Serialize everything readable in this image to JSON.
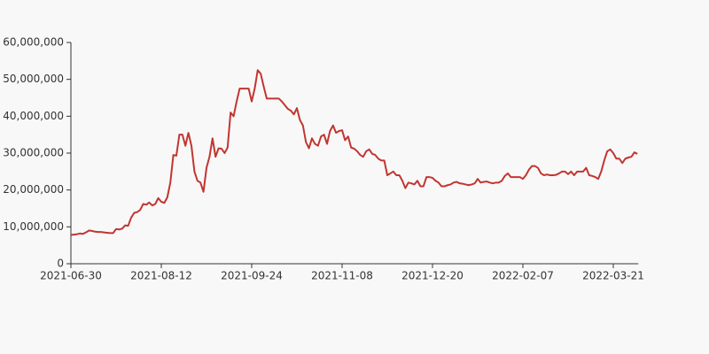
{
  "chart_data": {
    "type": "line",
    "categories": [
      "2021-06-30",
      null,
      null,
      null,
      null,
      null,
      null,
      null,
      null,
      null,
      null,
      null,
      null,
      null,
      null,
      null,
      null,
      null,
      null,
      null,
      null,
      null,
      null,
      null,
      null,
      null,
      null,
      null,
      null,
      null,
      "2021-08-12",
      null,
      null,
      null,
      null,
      null,
      null,
      null,
      null,
      null,
      null,
      null,
      null,
      null,
      null,
      null,
      null,
      null,
      null,
      null,
      null,
      null,
      null,
      null,
      null,
      null,
      null,
      null,
      null,
      null,
      "2021-09-24",
      null,
      null,
      null,
      null,
      null,
      null,
      null,
      null,
      null,
      null,
      null,
      null,
      null,
      null,
      null,
      null,
      null,
      null,
      null,
      null,
      null,
      null,
      null,
      null,
      null,
      null,
      null,
      null,
      null,
      "2021-11-08",
      null,
      null,
      null,
      null,
      null,
      null,
      null,
      null,
      null,
      null,
      null,
      null,
      null,
      null,
      null,
      null,
      null,
      null,
      null,
      null,
      null,
      null,
      null,
      null,
      null,
      null,
      null,
      null,
      null,
      "2021-12-20",
      null,
      null,
      null,
      null,
      null,
      null,
      null,
      null,
      null,
      null,
      null,
      null,
      null,
      null,
      null,
      null,
      null,
      null,
      null,
      null,
      null,
      null,
      null,
      null,
      null,
      null,
      null,
      null,
      null,
      "2022-02-07",
      null,
      null,
      null,
      null,
      null,
      null,
      null,
      null,
      null,
      null,
      null,
      null,
      null,
      null,
      null,
      null,
      null,
      null,
      null,
      null,
      null,
      null,
      null,
      null,
      null,
      null,
      null,
      null,
      null,
      "2022-03-21",
      null,
      null,
      null,
      null,
      null,
      null,
      null,
      null
    ],
    "series": [
      {
        "color": "#c23531",
        "values": [
          7800000,
          7900000,
          8000000,
          8200000,
          8100000,
          8500000,
          9000000,
          8900000,
          8700000,
          8600000,
          8600000,
          8500000,
          8400000,
          8300000,
          8300000,
          9400000,
          9300000,
          9500000,
          10400000,
          10300000,
          12500000,
          13800000,
          14000000,
          14600000,
          16200000,
          16000000,
          16600000,
          15800000,
          16200000,
          17800000,
          16800000,
          16500000,
          18000000,
          22000000,
          29500000,
          29300000,
          35000000,
          35000000,
          32000000,
          35500000,
          32000000,
          25000000,
          22500000,
          22000000,
          19500000,
          26000000,
          29000000,
          34000000,
          29000000,
          31300000,
          31200000,
          30000000,
          31500000,
          41000000,
          40000000,
          44000000,
          47500000,
          47500000,
          47500000,
          47500000,
          44000000,
          47500000,
          52500000,
          51500000,
          48000000,
          44800000,
          44800000,
          44800000,
          44800000,
          44800000,
          44000000,
          43000000,
          42000000,
          41500000,
          40500000,
          42200000,
          39000000,
          37500000,
          33000000,
          31300000,
          34000000,
          32500000,
          32000000,
          34500000,
          35000000,
          32500000,
          36000000,
          37500000,
          35500000,
          36000000,
          36200000,
          33500000,
          34500000,
          31500000,
          31200000,
          30500000,
          29500000,
          29000000,
          30500000,
          31000000,
          29800000,
          29500000,
          28500000,
          28000000,
          28000000,
          24000000,
          24500000,
          25000000,
          24000000,
          24000000,
          22500000,
          20500000,
          22000000,
          21800000,
          21500000,
          22500000,
          21000000,
          21000000,
          23500000,
          23500000,
          23300000,
          22500000,
          22000000,
          21000000,
          21000000,
          21300000,
          21500000,
          22000000,
          22200000,
          21800000,
          21700000,
          21500000,
          21300000,
          21500000,
          21800000,
          23000000,
          22000000,
          22200000,
          22300000,
          22000000,
          21800000,
          22000000,
          22000000,
          22500000,
          23800000,
          24500000,
          23500000,
          23500000,
          23500000,
          23500000,
          23000000,
          24000000,
          25500000,
          26500000,
          26500000,
          26000000,
          24500000,
          24000000,
          24200000,
          24000000,
          24000000,
          24100000,
          24500000,
          25000000,
          25000000,
          24300000,
          25000000,
          24000000,
          25000000,
          25000000,
          25000000,
          26000000,
          24000000,
          23800000,
          23500000,
          23000000,
          25000000,
          28000000,
          30500000,
          31000000,
          30000000,
          28500000,
          28500000,
          27300000,
          28500000,
          28800000,
          29000000,
          30200000,
          29800000
        ]
      }
    ],
    "ylim": [
      0,
      60000000
    ],
    "yticks": [
      0,
      {
        "value": 10000000,
        "label": "10,000,000"
      },
      {
        "value": 20000000,
        "label": "20,000,000"
      },
      {
        "value": 30000000,
        "label": "30,000,000"
      },
      {
        "value": 40000000,
        "label": "40,000,000"
      },
      {
        "value": 50000000,
        "label": "50,000,000"
      },
      {
        "value": 60000000,
        "label": "60,000,000"
      }
    ]
  }
}
